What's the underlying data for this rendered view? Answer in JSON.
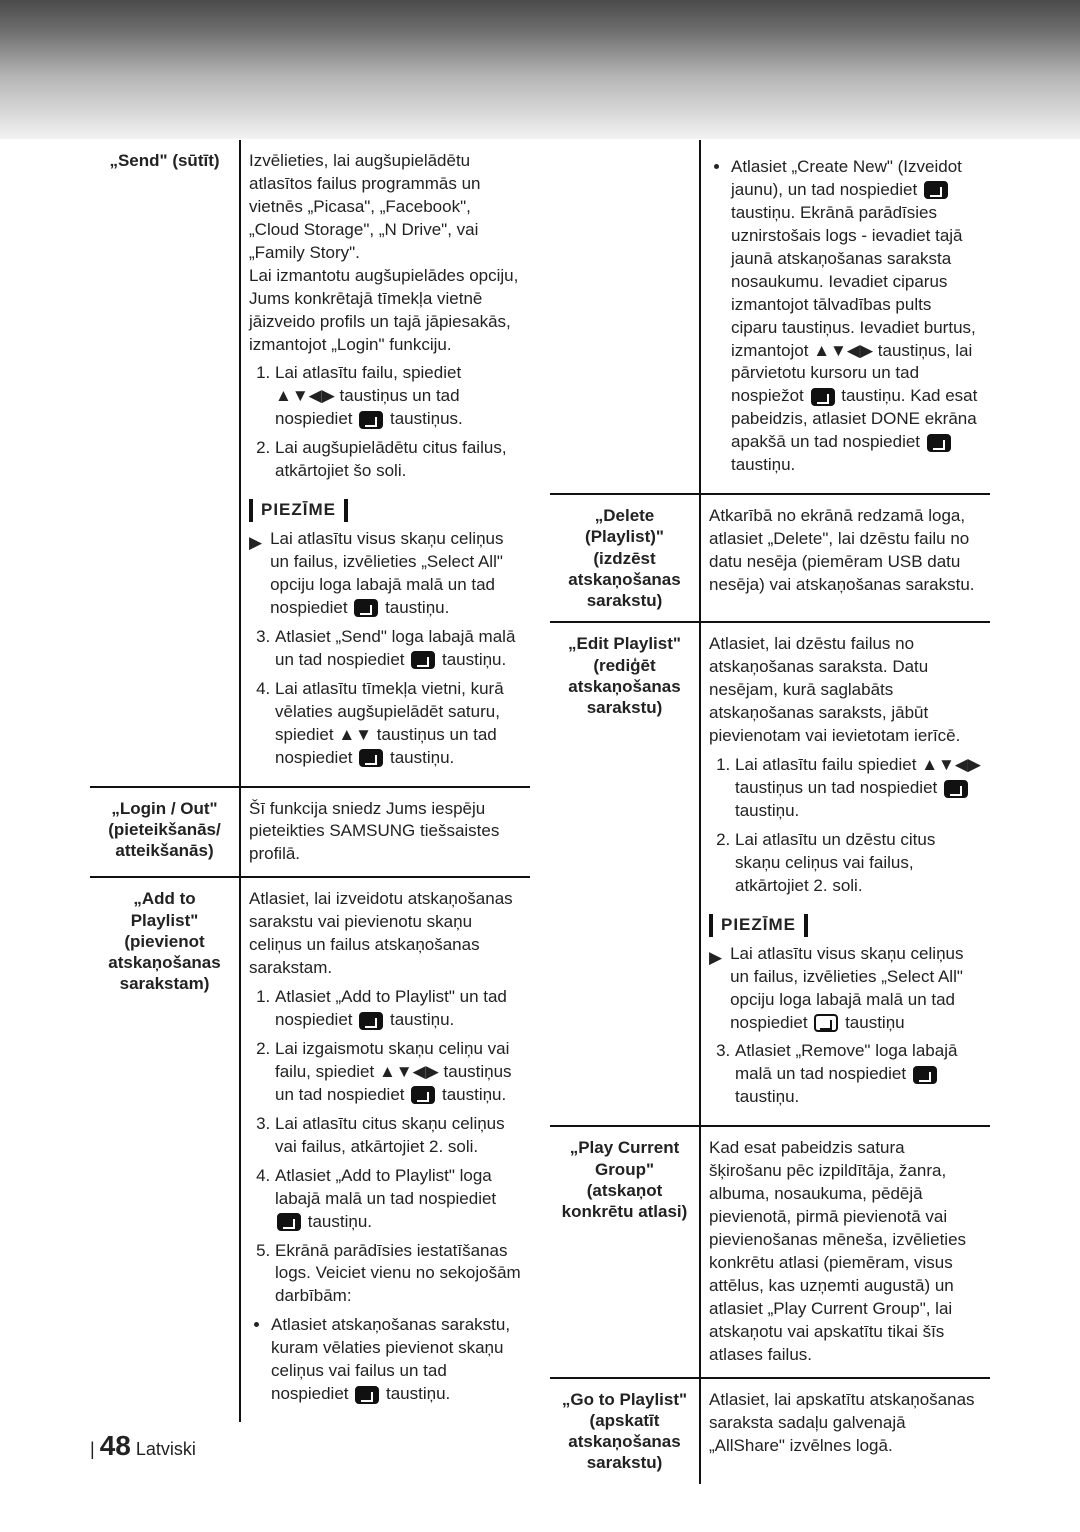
{
  "page": {
    "number": "48",
    "lang": "Latviski"
  },
  "arrows": {
    "updown": "▲▼",
    "all": "▲▼◀▶",
    "right_tri": "▶"
  },
  "labels": {
    "note": "PIEZĪME"
  },
  "left_col": {
    "send": {
      "title": "„Send\" (sūtīt)",
      "intro": "Izvēlieties, lai augšupielādētu atlasītos failus programmās un vietnēs „Picasa\", „Facebook\", „Cloud Storage\", „N Drive\", vai „Family Story\".\nLai izmantotu augšupielādes opciju, Jums konkrētajā tīmekļa vietnē jāizveido profils un tajā jāpiesakās, izmantojot „Login\" funkciju.",
      "step1_a": "Lai atlasītu failu, spiediet",
      "step1_b": "taustiņus un tad nospiediet",
      "step1_c": "taustiņus.",
      "step2": "Lai augšupielādētu citus failus, atkārtojiet šo soli.",
      "note_text": "Lai atlasītu visus skaņu celiņus un failus, izvēlieties „Select All\" opciju loga labajā malā un tad nospiediet",
      "note_tail": "taustiņu.",
      "step3_a": "Atlasiet „Send\" loga labajā malā un tad nospiediet",
      "step3_b": "taustiņu.",
      "step4_a": "Lai atlasītu tīmekļa vietni, kurā vēlaties augšupielādēt saturu, spiediet",
      "step4_b": "taustiņus un tad nospiediet",
      "step4_c": "taustiņu."
    },
    "login": {
      "title": "„Login / Out\" (pieteikšanās/ atteikšanās)",
      "text": "Šī funkcija sniedz Jums iespēju pieteikties SAMSUNG tiešsaistes profilā."
    },
    "add": {
      "title": "„Add to Playlist\" (pievienot atskaņošanas sarakstam)",
      "intro": "Atlasiet, lai izveidotu atskaņošanas sarakstu vai pievienotu skaņu celiņus un failus atskaņošanas sarakstam.",
      "step1_a": "Atlasiet „Add to Playlist\" un tad nospiediet",
      "step1_b": "taustiņu.",
      "step2_a": "Lai izgaismotu skaņu celiņu vai failu, spiediet",
      "step2_b": "taustiņus un tad nospiediet",
      "step2_c": "taustiņu.",
      "step3": "Lai atlasītu citus skaņu celiņus vai failus, atkārtojiet 2. soli.",
      "step4_a": "Atlasiet „Add to Playlist\" loga labajā malā un tad nospiediet",
      "step4_b": "taustiņu.",
      "step5": "Ekrānā parādīsies iestatīšanas logs. Veiciet vienu no sekojošām darbībām:",
      "bullet1_a": "Atlasiet atskaņošanas sarakstu, kuram vēlaties pievienot skaņu celiņus vai failus un tad nospiediet",
      "bullet1_b": "taustiņu."
    }
  },
  "right_col": {
    "create": {
      "bullet_a": "Atlasiet „Create New\" (Izveidot jaunu), un tad nospiediet",
      "bullet_b": "taustiņu. Ekrānā parādīsies uznirstošais logs - ievadiet tajā jaunā atskaņošanas saraksta nosaukumu. Ievadiet ciparus izmantojot tālvadības pults ciparu taustiņus. Ievadiet burtus, izmantojot",
      "bullet_c": "taustiņus, lai pārvietotu kursoru un tad nospiežot",
      "bullet_d": "taustiņu. Kad esat pabeidzis, atlasiet DONE ekrāna apakšā un tad nospiediet",
      "bullet_e": "taustiņu."
    },
    "delete": {
      "title": "„Delete (Playlist)\" (izdzēst atskaņošanas sarakstu)",
      "text": "Atkarībā no ekrānā redzamā loga, atlasiet „Delete\", lai dzēstu failu no datu nesēja (piemēram USB datu nesēja) vai atskaņošanas sarakstu."
    },
    "edit": {
      "title": "„Edit Playlist\" (rediģēt atskaņošanas sarakstu)",
      "intro": "Atlasiet, lai dzēstu failus no atskaņošanas saraksta. Datu nesējam, kurā saglabāts atskaņošanas saraksts, jābūt pievienotam vai ievietotam ierīcē.",
      "step1_a": "Lai atlasītu failu spiediet",
      "step1_b": "taustiņus un tad nospiediet",
      "step1_c": "taustiņu.",
      "step2": "Lai atlasītu un dzēstu citus skaņu celiņus vai failus, atkārtojiet 2. soli.",
      "note_text": "Lai atlasītu visus skaņu celiņus un failus, izvēlieties „Select All\" opciju loga labajā malā un tad nospiediet",
      "note_tail": "taustiņu",
      "step3_a": "Atlasiet „Remove\" loga labajā malā un tad nospiediet",
      "step3_b": "taustiņu."
    },
    "playcurrent": {
      "title": "„Play Current Group\" (atskaņot konkrētu atlasi)",
      "text": "Kad esat pabeidzis satura šķirošanu pēc izpildītāja, žanra, albuma, nosaukuma, pēdējā pievienotā, pirmā pievienotā vai pievienošanas mēneša, izvēlieties konkrētu atlasi (piemēram, visus attēlus, kas uzņemti augustā) un atlasiet „Play Current Group\", lai atskaņotu vai apskatītu tikai šīs atlases failus."
    },
    "goto": {
      "title": "„Go to Playlist\" (apskatīt atskaņošanas sarakstu)",
      "text": "Atlasiet, lai apskatītu atskaņošanas saraksta sadaļu galvenajā „AllShare\" izvēlnes logā."
    }
  }
}
